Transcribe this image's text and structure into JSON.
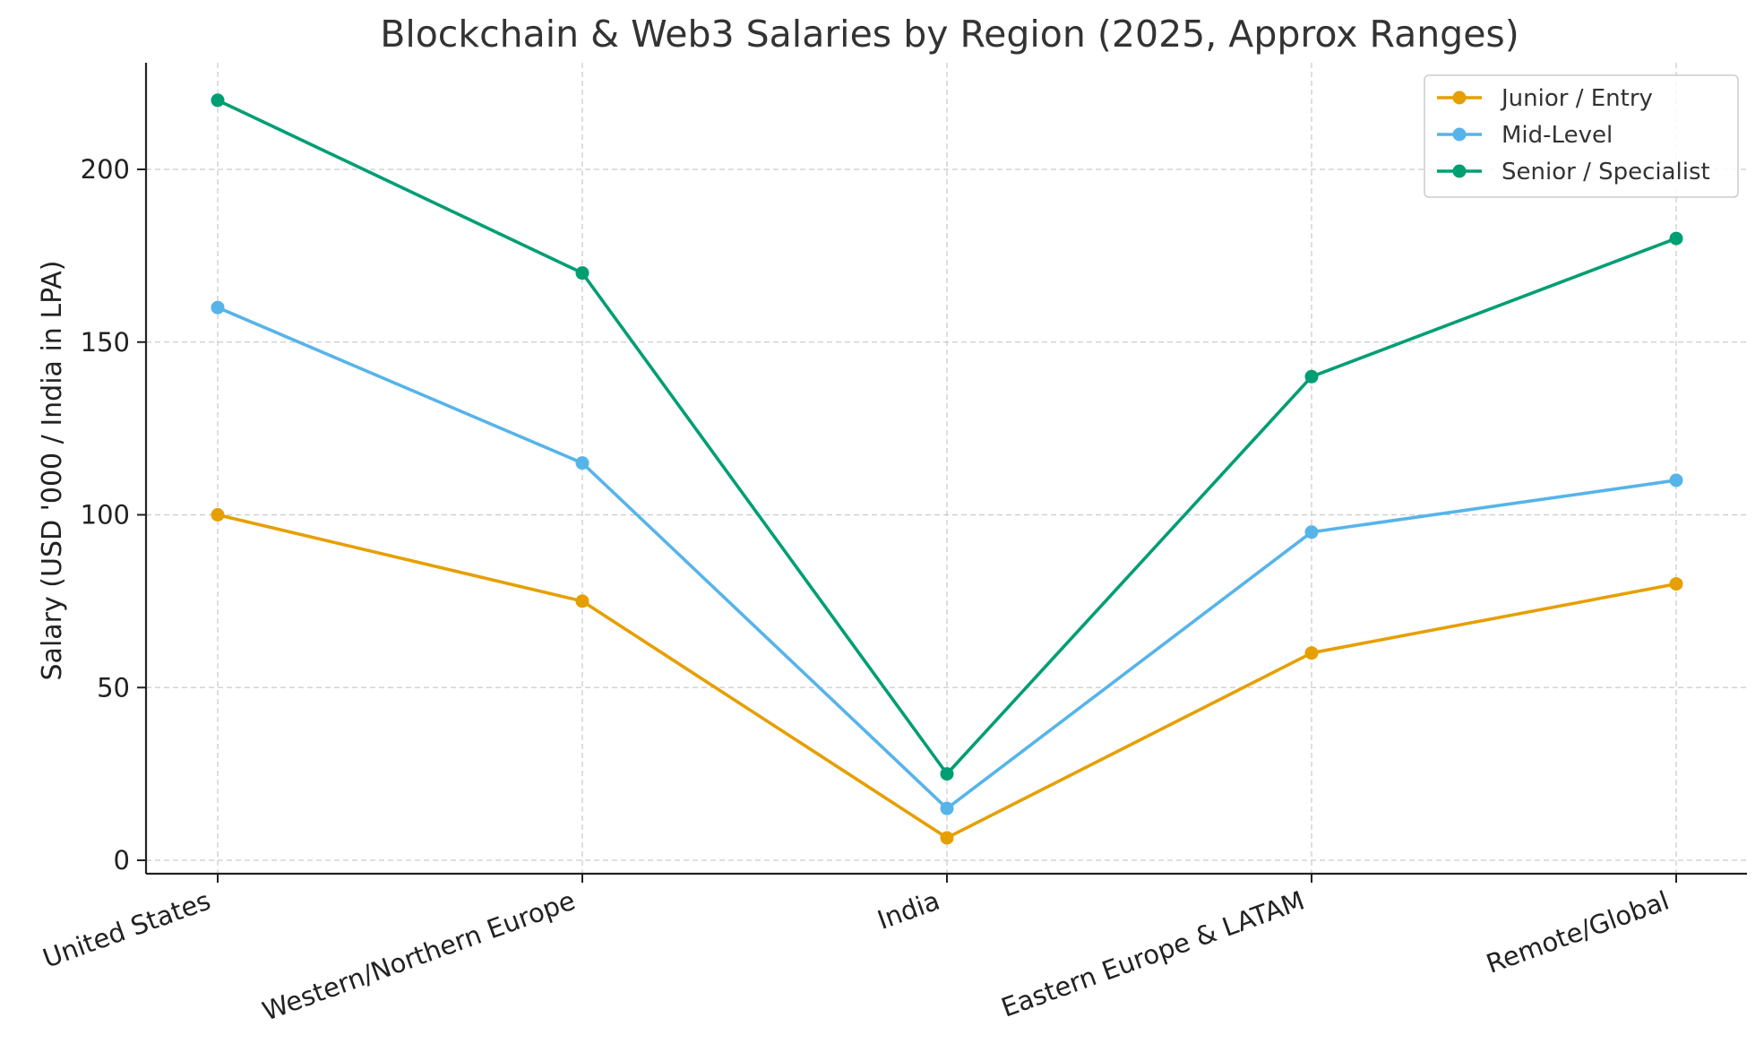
{
  "chart_data": {
    "type": "line",
    "title": "Blockchain & Web3 Salaries by Region (2025, Approx Ranges)",
    "xlabel": "",
    "ylabel": "Salary (USD '000 / India in LPA)",
    "categories": [
      "United States",
      "Western/Northern Europe",
      "India",
      "Eastern Europe & LATAM",
      "Remote/Global"
    ],
    "ylim": [
      -4,
      232
    ],
    "yticks": [
      0,
      50,
      100,
      150,
      200
    ],
    "grid": true,
    "legend_position": "top-right",
    "series": [
      {
        "name": "Junior / Entry",
        "color": "#E69F00",
        "values": [
          100,
          75,
          6.5,
          60,
          80
        ]
      },
      {
        "name": "Mid-Level",
        "color": "#56B4E9",
        "values": [
          160,
          115,
          15,
          95,
          110
        ]
      },
      {
        "name": "Senior / Specialist",
        "color": "#009E73",
        "values": [
          220,
          170,
          25,
          140,
          180
        ]
      }
    ]
  }
}
